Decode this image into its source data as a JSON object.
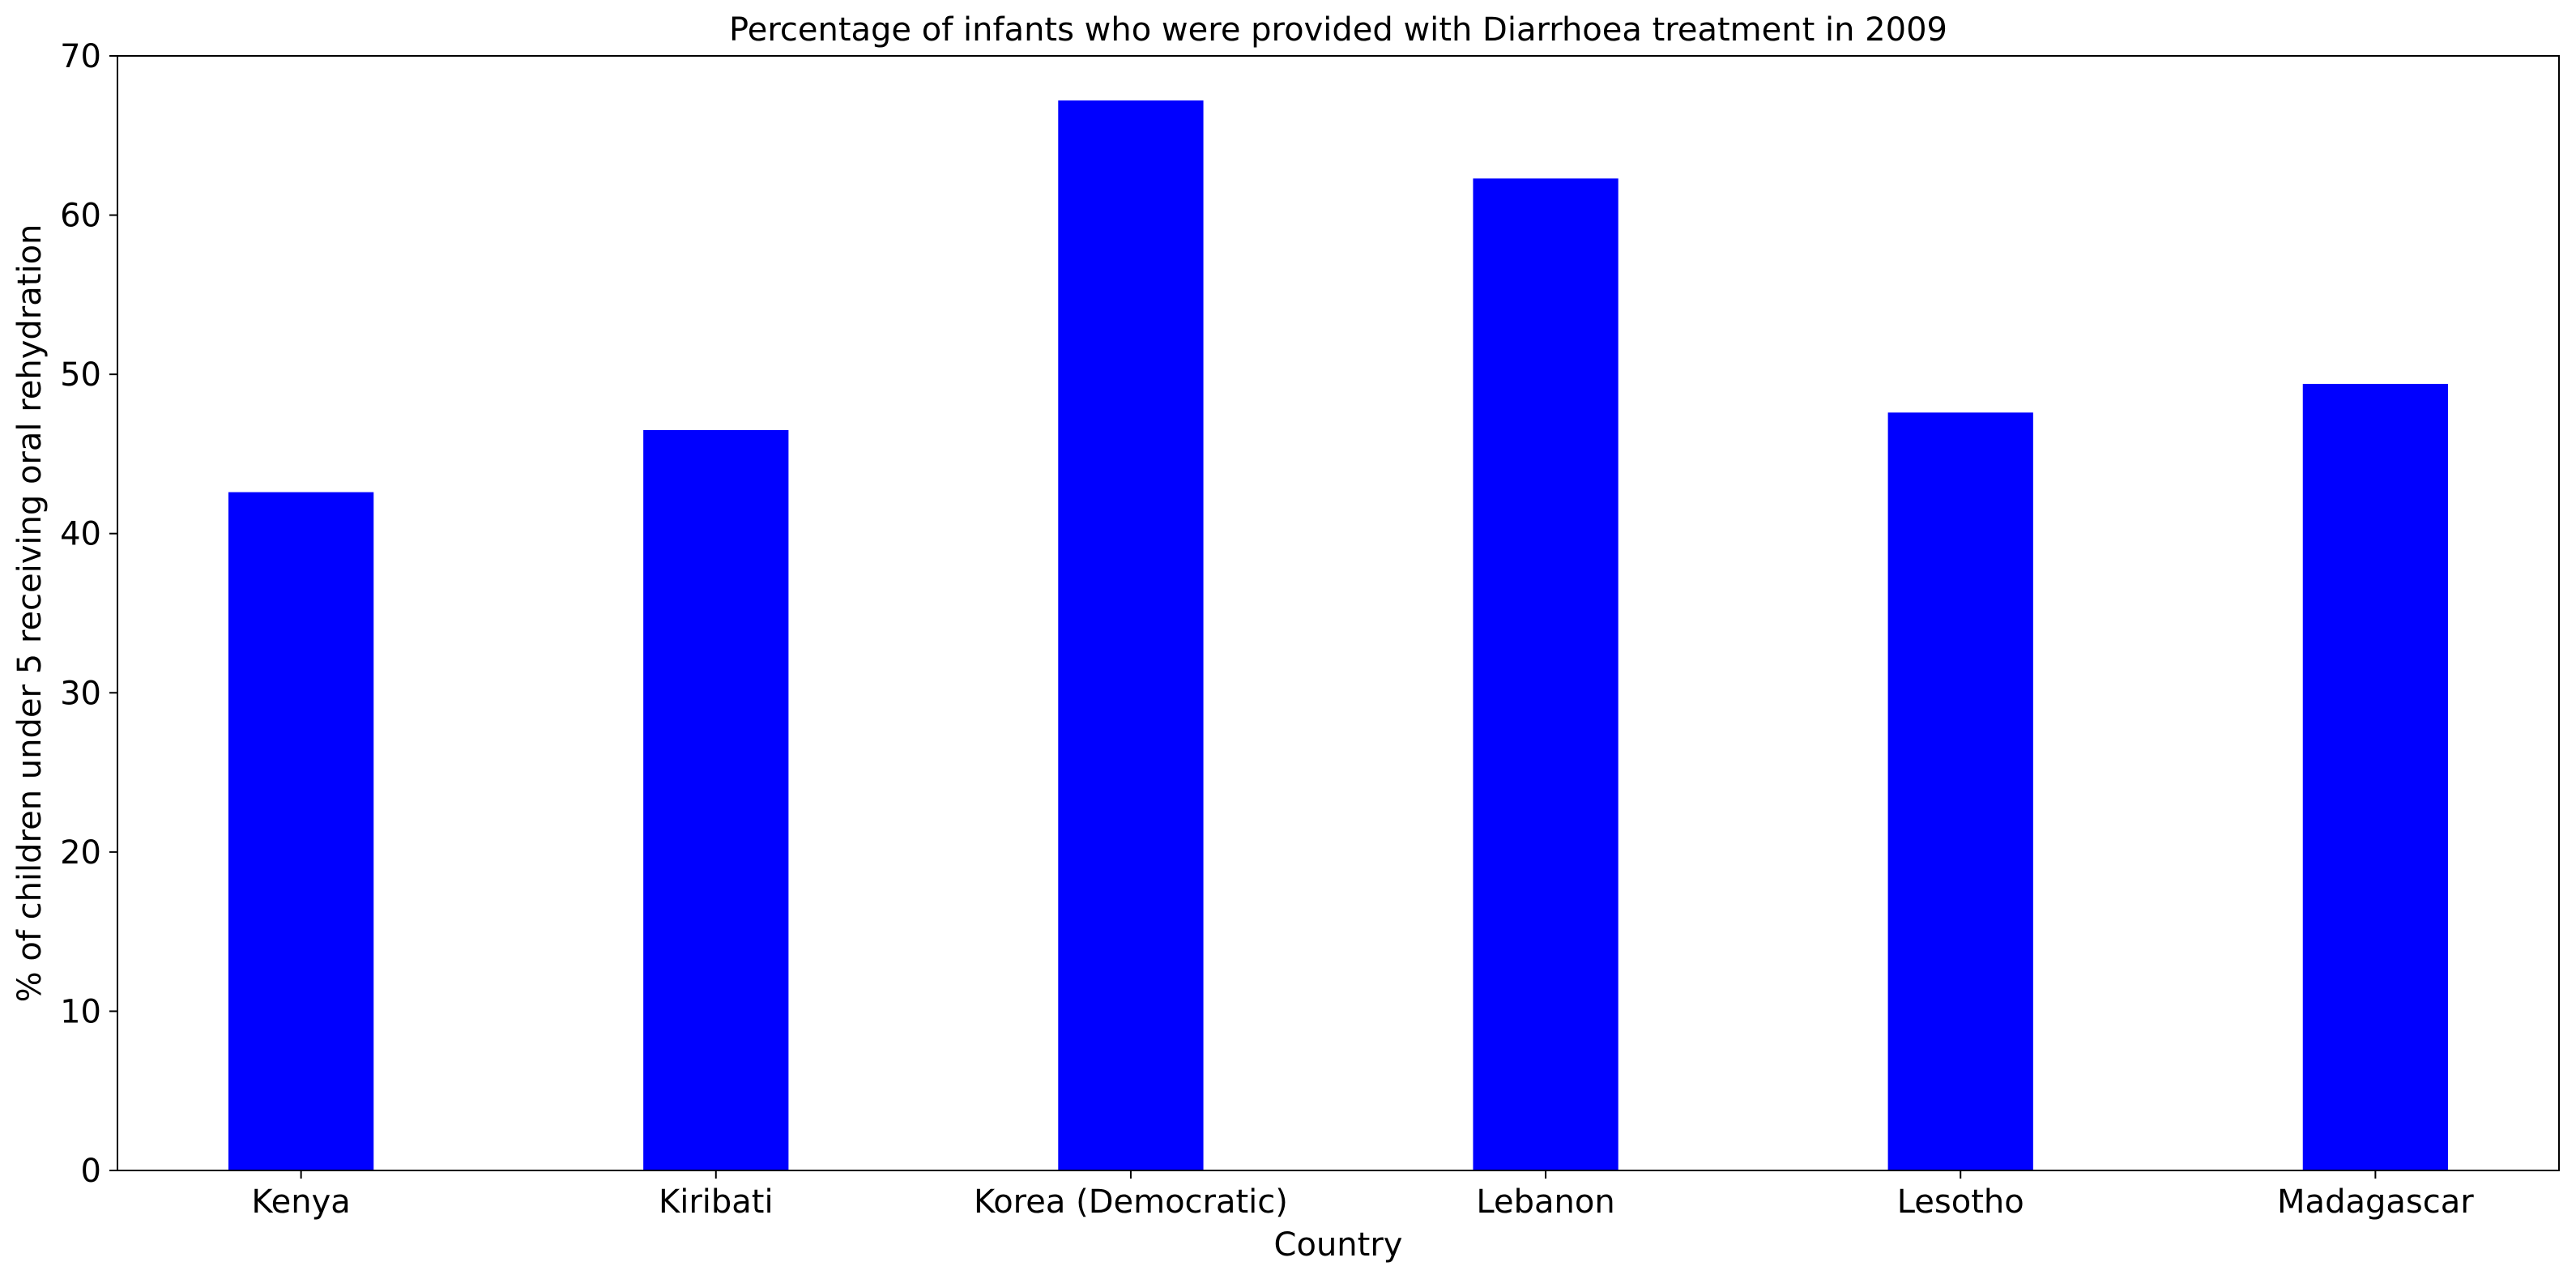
{
  "chart_data": {
    "type": "bar",
    "title": "Percentage of infants who were provided with Diarrhoea treatment in 2009",
    "xlabel": "Country",
    "ylabel": "% of children under 5 receiving oral rehydration",
    "categories": [
      "Kenya",
      "Kiribati",
      "Korea (Democratic)",
      "Lebanon",
      "Lesotho",
      "Madagascar"
    ],
    "values": [
      42.6,
      46.5,
      67.2,
      62.3,
      47.6,
      49.4
    ],
    "ylim": [
      0,
      70
    ],
    "yticks": [
      0,
      10,
      20,
      30,
      40,
      50,
      60,
      70
    ],
    "bar_color": "#0000ff",
    "grid": false,
    "legend": "none"
  }
}
